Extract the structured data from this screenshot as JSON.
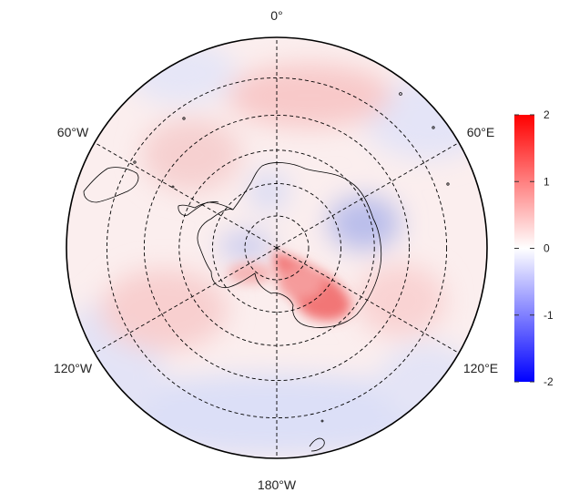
{
  "map": {
    "projection": "south-polar-stereographic",
    "meridian_labels": {
      "top": "0°",
      "upper_left": "60°W",
      "upper_right": "60°E",
      "lower_left": "120°W",
      "lower_right": "120°E",
      "bottom": "180°W"
    },
    "graticule_meridians_deg": [
      0,
      60,
      120,
      180,
      240,
      300
    ],
    "graticule_latitude_circles_deg": [
      -40,
      -50,
      -60,
      -70,
      -80
    ],
    "outer_latitude_deg": -30,
    "graticule_style": "dashed",
    "field": {
      "description_colors": "diverging",
      "hotspots": [
        {
          "sign": "positive",
          "region": "East Antarctica near 150°E",
          "value": 1.6
        },
        {
          "sign": "negative",
          "region": "East Antarctica near 60-90°E",
          "value": -0.8
        },
        {
          "sign": "negative",
          "region": "Weddell / 30°W sector",
          "value": -0.5
        },
        {
          "sign": "positive",
          "region": "mid-latitude ring",
          "value": 0.4
        }
      ]
    }
  },
  "colorbar": {
    "min": -2,
    "max": 2,
    "ticks": [
      "2",
      "1",
      "0",
      "-1",
      "-2"
    ],
    "tick_values": [
      2,
      1,
      0,
      -1,
      -2
    ],
    "colors": {
      "low": "#0000ff",
      "mid": "#ffffff",
      "high": "#ff0000"
    }
  }
}
